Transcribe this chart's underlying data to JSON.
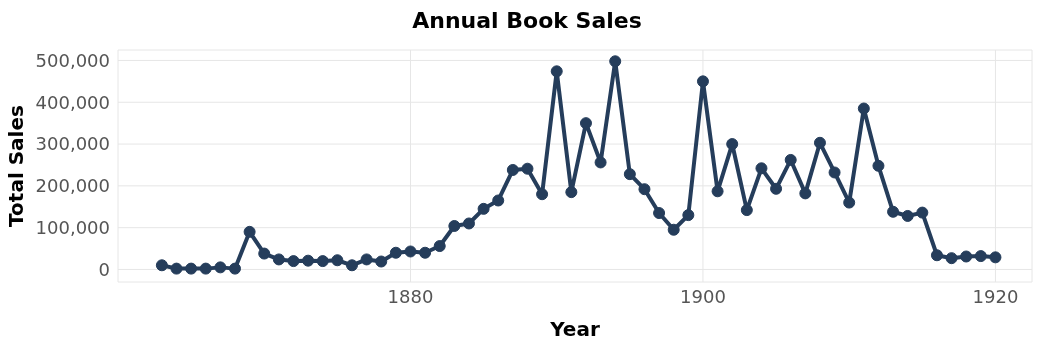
{
  "chart_data": {
    "type": "line",
    "title": "Annual Book Sales",
    "xlabel": "Year",
    "ylabel": "Total Sales",
    "x": [
      1863,
      1864,
      1865,
      1866,
      1867,
      1868,
      1869,
      1870,
      1871,
      1872,
      1873,
      1874,
      1875,
      1876,
      1877,
      1878,
      1879,
      1880,
      1881,
      1882,
      1883,
      1884,
      1885,
      1886,
      1887,
      1888,
      1889,
      1890,
      1891,
      1892,
      1893,
      1894,
      1895,
      1896,
      1897,
      1898,
      1899,
      1900,
      1901,
      1902,
      1903,
      1904,
      1905,
      1906,
      1907,
      1908,
      1909,
      1910,
      1911,
      1912,
      1913,
      1914,
      1915,
      1916,
      1917,
      1918,
      1919,
      1920
    ],
    "series": [
      {
        "color": "#253d5b",
        "values": [
          10000,
          2000,
          2000,
          2000,
          5000,
          2000,
          90000,
          38000,
          24000,
          20000,
          21000,
          20000,
          22000,
          10000,
          24000,
          19000,
          40000,
          43000,
          40000,
          56000,
          104000,
          110000,
          145000,
          165000,
          238000,
          241000,
          180000,
          474000,
          185000,
          350000,
          256000,
          498000,
          228000,
          192000,
          135000,
          95000,
          130000,
          450000,
          187000,
          300000,
          142000,
          242000,
          193000,
          262000,
          182000,
          303000,
          232000,
          160000,
          385000,
          248000,
          138000,
          128000,
          136000,
          34000,
          27000,
          31000,
          32000,
          29000
        ]
      }
    ],
    "xlim": [
      1860,
      1922.5
    ],
    "xticks": [
      1880,
      1900,
      1920
    ],
    "ylim": [
      -30000,
      525000
    ],
    "yticks": [
      0,
      {
        "value": 100000,
        "label": "100,000"
      },
      {
        "value": 200000,
        "label": "200,000"
      },
      {
        "value": 300000,
        "label": "300,000"
      },
      {
        "value": 400000,
        "label": "400,000"
      },
      {
        "value": 500000,
        "label": "500,000"
      }
    ],
    "grid": true,
    "marker": "circle",
    "line_style": "solid",
    "legend": false
  }
}
